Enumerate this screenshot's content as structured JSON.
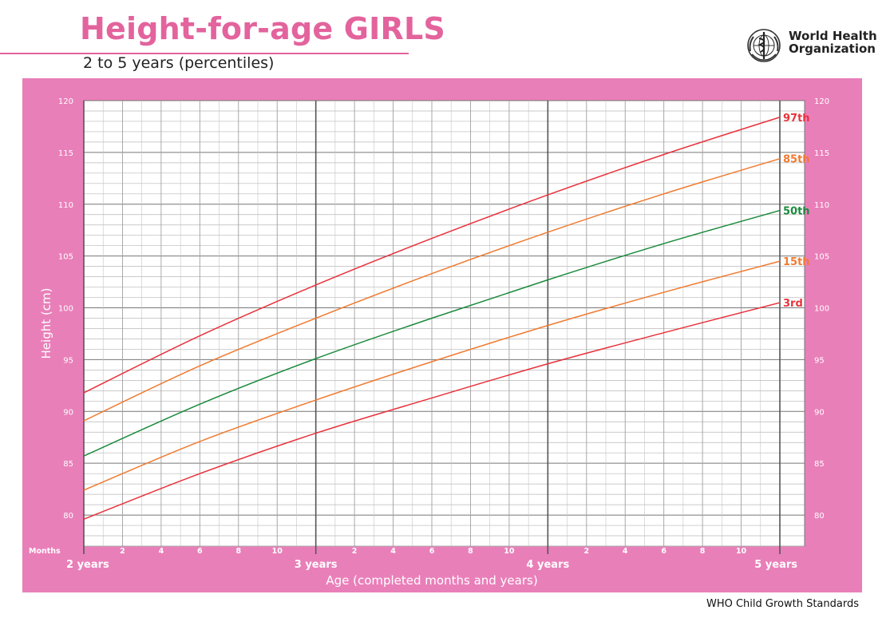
{
  "header": {
    "title": "Height-for-age GIRLS",
    "subtitle": "2 to 5 years (percentiles)"
  },
  "logo": {
    "icon": "who-emblem-icon",
    "name_line1": "World Health",
    "name_line2": "Organization"
  },
  "footer": {
    "text": "WHO Child Growth Standards"
  },
  "colors": {
    "brand_pink": "#e3639d",
    "panel_pink": "#e97fb9",
    "red_curve": "#e8323c",
    "orange_curve": "#f07a30",
    "green_curve": "#1a8a3c"
  },
  "chart_data": {
    "type": "line",
    "title": "Height-for-age GIRLS",
    "subtitle": "2 to 5 years (percentiles)",
    "xlabel": "Age (completed months and years)",
    "ylabel": "Height (cm)",
    "x_unit": "months",
    "xlim": [
      24,
      60
    ],
    "ylim": [
      77,
      120
    ],
    "y_ticks": [
      80,
      85,
      90,
      95,
      100,
      105,
      110,
      115,
      120
    ],
    "months_axis_label": "Months",
    "month_ticks": [
      {
        "month": 26,
        "label": "2"
      },
      {
        "month": 28,
        "label": "4"
      },
      {
        "month": 30,
        "label": "6"
      },
      {
        "month": 32,
        "label": "8"
      },
      {
        "month": 34,
        "label": "10"
      },
      {
        "month": 38,
        "label": "2"
      },
      {
        "month": 40,
        "label": "4"
      },
      {
        "month": 42,
        "label": "6"
      },
      {
        "month": 44,
        "label": "8"
      },
      {
        "month": 46,
        "label": "10"
      },
      {
        "month": 50,
        "label": "2"
      },
      {
        "month": 52,
        "label": "4"
      },
      {
        "month": 54,
        "label": "6"
      },
      {
        "month": 56,
        "label": "8"
      },
      {
        "month": 58,
        "label": "10"
      }
    ],
    "year_ticks": [
      {
        "month": 24,
        "label": "2 years"
      },
      {
        "month": 36,
        "label": "3 years"
      },
      {
        "month": 48,
        "label": "4 years"
      },
      {
        "month": 60,
        "label": "5 years"
      }
    ],
    "grid": true,
    "legend": "right-end labels",
    "x": [
      24,
      30,
      36,
      42,
      48,
      54,
      60
    ],
    "series": [
      {
        "name": "97th",
        "color": "#e8323c",
        "values": [
          91.8,
          97.3,
          102.2,
          106.7,
          110.9,
          114.8,
          118.4
        ]
      },
      {
        "name": "85th",
        "color": "#f07a30",
        "values": [
          89.1,
          94.4,
          99.0,
          103.3,
          107.3,
          111.0,
          114.4
        ]
      },
      {
        "name": "50th",
        "color": "#1a8a3c",
        "values": [
          85.7,
          90.7,
          95.1,
          99.0,
          102.7,
          106.2,
          109.4
        ]
      },
      {
        "name": "15th",
        "color": "#f07a30",
        "values": [
          82.4,
          87.1,
          91.1,
          94.8,
          98.3,
          101.5,
          104.5
        ]
      },
      {
        "name": "3rd",
        "color": "#e8323c",
        "values": [
          79.6,
          84.0,
          87.9,
          91.3,
          94.6,
          97.6,
          100.5
        ]
      }
    ]
  }
}
